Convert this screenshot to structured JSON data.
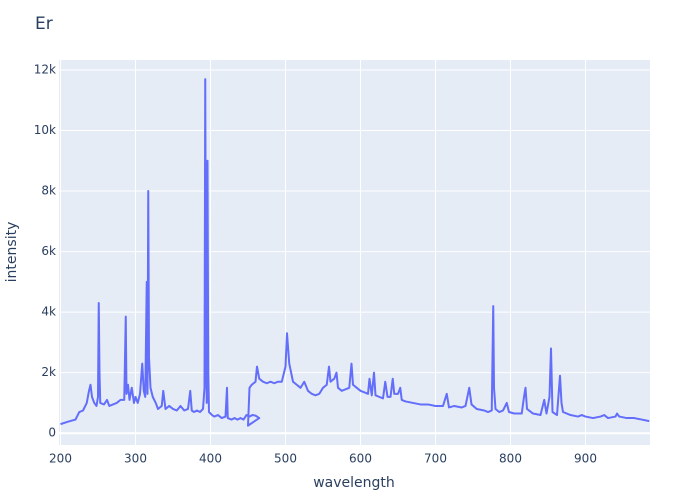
{
  "chart_data": {
    "type": "line",
    "title": "Er",
    "x_label": "wavelength",
    "y_label": "intensity",
    "xlim": [
      198,
      986
    ],
    "ylim": [
      -390,
      12330
    ],
    "xticks": [
      200,
      300,
      400,
      500,
      600,
      700,
      800,
      900
    ],
    "yticks": [
      0,
      {
        "value": 2000,
        "label": "2k"
      },
      {
        "value": 4000,
        "label": "4k"
      },
      {
        "value": 6000,
        "label": "6k"
      },
      {
        "value": 8000,
        "label": "8k"
      },
      {
        "value": 10000,
        "label": "10k"
      },
      {
        "value": 12000,
        "label": "12k"
      }
    ],
    "grid": true,
    "series": [
      {
        "color": "#636efa",
        "x": [
          200,
          210,
          220,
          225,
          230,
          235,
          238,
          240,
          242,
          245,
          248,
          250,
          251,
          252,
          253,
          258,
          262,
          265,
          270,
          275,
          280,
          285,
          287,
          288,
          290,
          292,
          295,
          298,
          300,
          303,
          306,
          309,
          311,
          313,
          315,
          316,
          317,
          318,
          320,
          323,
          327,
          330,
          335,
          337,
          340,
          345,
          350,
          355,
          360,
          365,
          370,
          373,
          375,
          378,
          382,
          386,
          390,
          392,
          393,
          394,
          395,
          396,
          397,
          398,
          402,
          405,
          410,
          415,
          420,
          422,
          423,
          428,
          432,
          436,
          440,
          444,
          448,
          452,
          456,
          460,
          465,
          450,
          452,
          455,
          460,
          462,
          465,
          470,
          475,
          480,
          485,
          490,
          495,
          500,
          502,
          505,
          510,
          515,
          520,
          525,
          530,
          535,
          540,
          545,
          550,
          555,
          558,
          560,
          565,
          568,
          570,
          575,
          580,
          585,
          588,
          590,
          595,
          600,
          605,
          610,
          612,
          615,
          618,
          620,
          625,
          630,
          633,
          636,
          640,
          643,
          645,
          650,
          653,
          655,
          660,
          670,
          680,
          690,
          700,
          710,
          715,
          718,
          725,
          735,
          740,
          745,
          748,
          755,
          765,
          770,
          775,
          777,
          778,
          780,
          785,
          790,
          795,
          798,
          805,
          815,
          818,
          820,
          822,
          830,
          840,
          845,
          848,
          852,
          854,
          856,
          862,
          866,
          868,
          870,
          880,
          890,
          895,
          900,
          910,
          920,
          925,
          930,
          940,
          942,
          945,
          955,
          965,
          975,
          985
        ],
        "values": [
          300,
          380,
          450,
          700,
          750,
          1000,
          1400,
          1600,
          1200,
          1000,
          900,
          1200,
          4300,
          2000,
          1000,
          950,
          1100,
          900,
          950,
          1000,
          1100,
          1100,
          3850,
          1300,
          1600,
          1100,
          1500,
          1000,
          1200,
          1000,
          1300,
          2300,
          1400,
          1200,
          5000,
          1300,
          8000,
          2500,
          1500,
          1200,
          1000,
          800,
          900,
          1400,
          800,
          900,
          800,
          750,
          900,
          750,
          800,
          1400,
          750,
          700,
          750,
          700,
          800,
          1500,
          11700,
          3000,
          1000,
          9000,
          2000,
          700,
          600,
          550,
          600,
          500,
          550,
          1500,
          500,
          450,
          500,
          450,
          500,
          450,
          600,
          550,
          600,
          580,
          500,
          250,
          1500,
          1600,
          1700,
          2200,
          1800,
          1700,
          1650,
          1700,
          1650,
          1700,
          1700,
          2200,
          3300,
          2300,
          1700,
          1600,
          1500,
          1700,
          1400,
          1300,
          1250,
          1300,
          1500,
          1600,
          2200,
          1700,
          1800,
          2000,
          1500,
          1400,
          1450,
          1500,
          2300,
          1600,
          1500,
          1400,
          1350,
          1300,
          1800,
          1250,
          2000,
          1250,
          1200,
          1150,
          1700,
          1200,
          1200,
          1800,
          1300,
          1300,
          1500,
          1100,
          1050,
          1000,
          950,
          950,
          900,
          900,
          1300,
          850,
          900,
          850,
          900,
          1500,
          950,
          800,
          750,
          700,
          750,
          4200,
          1500,
          800,
          700,
          750,
          1000,
          700,
          650,
          650,
          1200,
          1500,
          800,
          650,
          600,
          1100,
          650,
          1200,
          2800,
          700,
          600,
          1900,
          1000,
          700,
          600,
          550,
          600,
          550,
          500,
          550,
          600,
          500,
          550,
          650,
          550,
          500,
          500,
          450,
          400
        ]
      }
    ]
  }
}
